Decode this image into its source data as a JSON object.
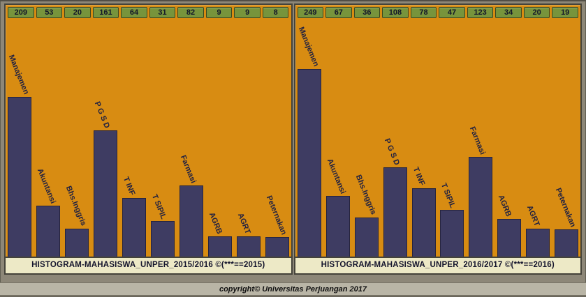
{
  "page": {
    "copyright": "copyright© Universitas Perjuangan 2017"
  },
  "colors": {
    "page_bg": "#8d8778",
    "panel_bg": "#d88c12",
    "panel_border": "#45433a",
    "badge_bg": "#77943c",
    "badge_border": "#3c471f",
    "badge_text": "#12152a",
    "bar_fill": "#3e3c62",
    "bar_border": "#26243e",
    "label_text": "#232240",
    "caption_bg": "#ede9c6",
    "caption_text": "#15152d",
    "band_bg": "#b9b5a6",
    "band_text": "#101010"
  },
  "chart_data": [
    {
      "type": "bar",
      "title": "HISTOGRAM-MAHASISWA_UNPER_2015/2016  ©(***==2015)",
      "categories": [
        "Manajemen",
        "Akuntansi",
        "Bhs.Inggris",
        "P G S D",
        "T INF",
        "T SIPIL",
        "Farmasi",
        "AGRB",
        "AGRT",
        "Peternakan"
      ],
      "values": [
        209,
        53,
        20,
        161,
        64,
        31,
        82,
        9,
        9,
        8
      ],
      "value_labels_position": "top-badges",
      "grid": false,
      "legend": "none"
    },
    {
      "type": "bar",
      "title": "HISTOGRAM-MAHASISWA_UNPER_2016/2017  ©(***==2016)",
      "categories": [
        "Manajemen",
        "Akuntansi",
        "Bhs.Inggris",
        "P G S D",
        "T INF",
        "T SIPIL",
        "Farmasi",
        "AGRB",
        "AGRT",
        "Peternakan"
      ],
      "values": [
        249,
        67,
        36,
        108,
        78,
        47,
        123,
        34,
        20,
        19
      ],
      "value_labels_position": "top-badges",
      "grid": false,
      "legend": "none"
    }
  ]
}
